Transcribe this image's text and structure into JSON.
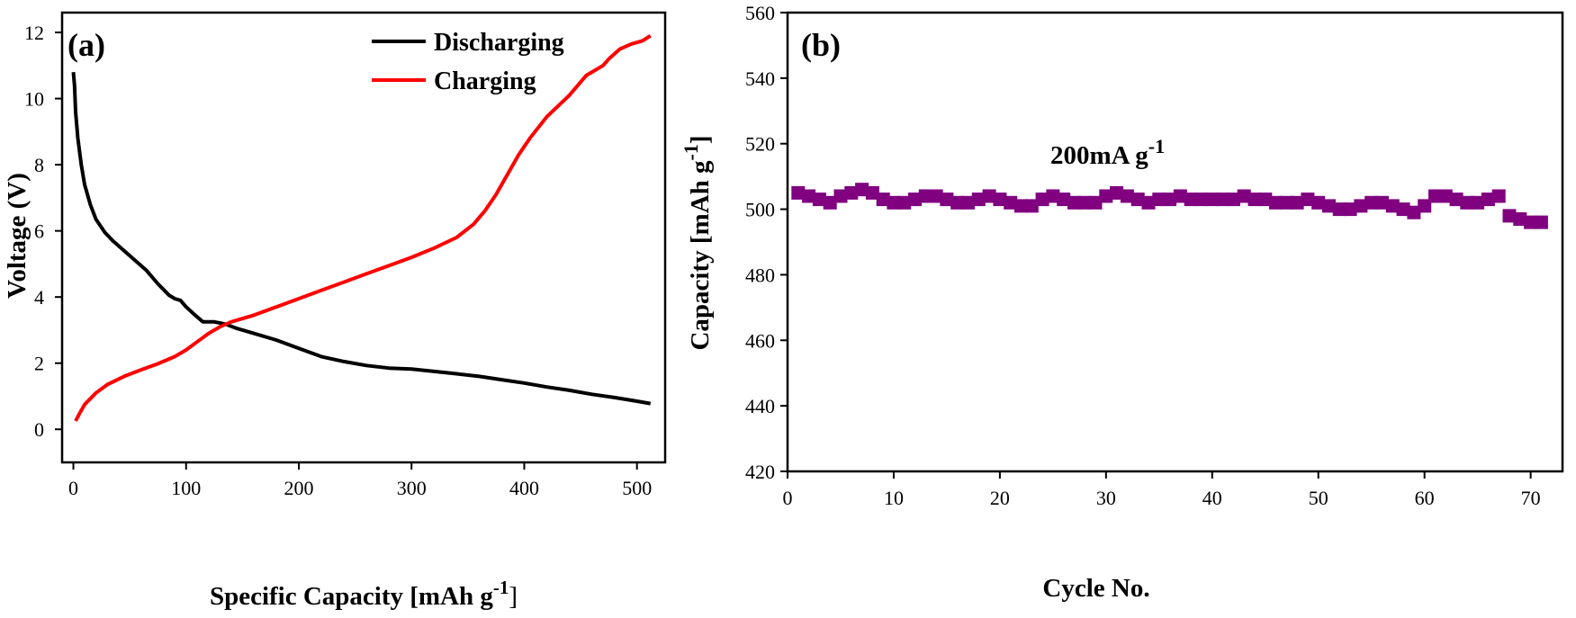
{
  "chart_data": [
    {
      "type": "line",
      "panel_label": "(a)",
      "xlabel": "Specific Capacity [mAh g",
      "xlabel_sup": "-1",
      "xlabel_close": "]",
      "ylabel": "Voltage (V)",
      "xlim": [
        -10,
        525
      ],
      "ylim": [
        -1,
        12.6
      ],
      "xticks": [
        0,
        100,
        200,
        300,
        400,
        500
      ],
      "yticks": [
        0,
        2,
        4,
        6,
        8,
        10,
        12
      ],
      "grid": false,
      "legend_position": "top-right",
      "series": [
        {
          "name": "Discharging",
          "color": "#000000",
          "points": [
            [
              0,
              10.8
            ],
            [
              1,
              10.4
            ],
            [
              2,
              9.6
            ],
            [
              4,
              8.8
            ],
            [
              7,
              8.0
            ],
            [
              10,
              7.4
            ],
            [
              15,
              6.8
            ],
            [
              20,
              6.35
            ],
            [
              28,
              5.95
            ],
            [
              35,
              5.7
            ],
            [
              45,
              5.4
            ],
            [
              55,
              5.1
            ],
            [
              65,
              4.8
            ],
            [
              75,
              4.4
            ],
            [
              85,
              4.05
            ],
            [
              90,
              3.95
            ],
            [
              95,
              3.9
            ],
            [
              100,
              3.7
            ],
            [
              108,
              3.45
            ],
            [
              115,
              3.25
            ],
            [
              125,
              3.25
            ],
            [
              135,
              3.18
            ],
            [
              145,
              3.05
            ],
            [
              160,
              2.9
            ],
            [
              180,
              2.7
            ],
            [
              200,
              2.45
            ],
            [
              220,
              2.2
            ],
            [
              240,
              2.05
            ],
            [
              260,
              1.93
            ],
            [
              280,
              1.85
            ],
            [
              300,
              1.82
            ],
            [
              320,
              1.75
            ],
            [
              340,
              1.68
            ],
            [
              360,
              1.6
            ],
            [
              380,
              1.5
            ],
            [
              400,
              1.4
            ],
            [
              420,
              1.28
            ],
            [
              440,
              1.18
            ],
            [
              460,
              1.06
            ],
            [
              480,
              0.96
            ],
            [
              500,
              0.85
            ],
            [
              512,
              0.78
            ]
          ]
        },
        {
          "name": "Charging",
          "color": "#ff0000",
          "points": [
            [
              2,
              0.25
            ],
            [
              5,
              0.45
            ],
            [
              10,
              0.75
            ],
            [
              20,
              1.1
            ],
            [
              30,
              1.35
            ],
            [
              45,
              1.6
            ],
            [
              60,
              1.8
            ],
            [
              75,
              1.98
            ],
            [
              90,
              2.2
            ],
            [
              100,
              2.4
            ],
            [
              110,
              2.65
            ],
            [
              120,
              2.9
            ],
            [
              130,
              3.1
            ],
            [
              140,
              3.25
            ],
            [
              160,
              3.45
            ],
            [
              180,
              3.7
            ],
            [
              200,
              3.95
            ],
            [
              220,
              4.2
            ],
            [
              240,
              4.45
            ],
            [
              260,
              4.7
            ],
            [
              280,
              4.95
            ],
            [
              300,
              5.2
            ],
            [
              320,
              5.48
            ],
            [
              340,
              5.8
            ],
            [
              355,
              6.2
            ],
            [
              365,
              6.6
            ],
            [
              375,
              7.1
            ],
            [
              385,
              7.7
            ],
            [
              395,
              8.3
            ],
            [
              405,
              8.8
            ],
            [
              420,
              9.45
            ],
            [
              440,
              10.1
            ],
            [
              455,
              10.7
            ],
            [
              470,
              11.0
            ],
            [
              475,
              11.2
            ],
            [
              485,
              11.5
            ],
            [
              495,
              11.65
            ],
            [
              505,
              11.75
            ],
            [
              512,
              11.9
            ]
          ]
        }
      ]
    },
    {
      "type": "scatter",
      "panel_label": "(b)",
      "xlabel": "Cycle No.",
      "ylabel": "Capacity [mAh g",
      "ylabel_sup": "-1",
      "ylabel_close": "]",
      "annotation": "200mA g",
      "annotation_sup": "-1",
      "xlim": [
        0,
        73
      ],
      "ylim": [
        420,
        560
      ],
      "xticks": [
        0,
        10,
        20,
        30,
        40,
        50,
        60,
        70
      ],
      "yticks": [
        420,
        440,
        460,
        480,
        500,
        520,
        540,
        560
      ],
      "grid": false,
      "marker": "square",
      "marker_color": "#800080",
      "series": [
        {
          "x": [
            1,
            2,
            3,
            4,
            5,
            6,
            7,
            8,
            9,
            10,
            11,
            12,
            13,
            14,
            15,
            16,
            17,
            18,
            19,
            20,
            21,
            22,
            23,
            24,
            25,
            26,
            27,
            28,
            29,
            30,
            31,
            32,
            33,
            34,
            35,
            36,
            37,
            38,
            39,
            40,
            41,
            42,
            43,
            44,
            45,
            46,
            47,
            48,
            49,
            50,
            51,
            52,
            53,
            54,
            55,
            56,
            57,
            58,
            59,
            60,
            61,
            62,
            63,
            64,
            65,
            66,
            67,
            68,
            69,
            70,
            71
          ],
          "y": [
            505,
            504,
            503,
            502,
            504,
            505,
            506,
            505,
            503,
            502,
            502,
            503,
            504,
            504,
            503,
            502,
            502,
            503,
            504,
            503,
            502,
            501,
            501,
            503,
            504,
            503,
            502,
            502,
            502,
            504,
            505,
            504,
            503,
            502,
            503,
            503,
            504,
            503,
            503,
            503,
            503,
            503,
            504,
            503,
            503,
            502,
            502,
            502,
            503,
            502,
            501,
            500,
            500,
            501,
            502,
            502,
            501,
            500,
            499,
            501,
            504,
            504,
            503,
            502,
            502,
            503,
            504,
            498,
            497,
            496,
            496
          ]
        }
      ]
    }
  ]
}
